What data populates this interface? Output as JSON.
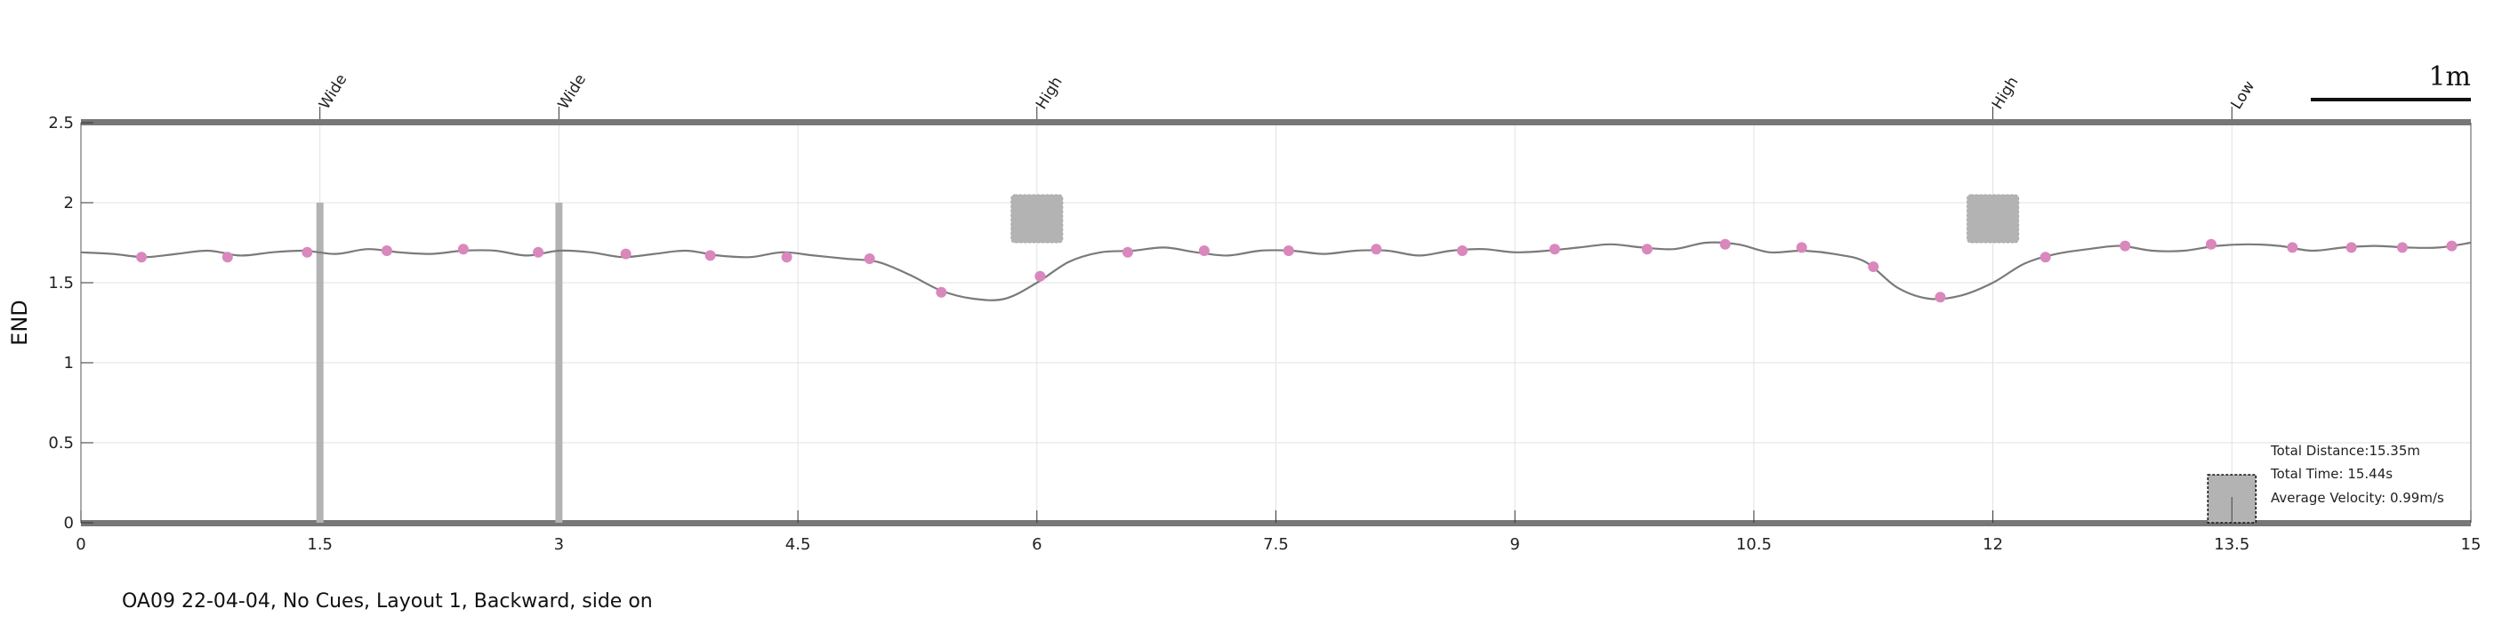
{
  "chart_data": {
    "type": "line",
    "title": "",
    "xlabel": "",
    "ylabel": "END",
    "xlim": [
      0,
      15
    ],
    "ylim": [
      0,
      2.5
    ],
    "xticks": [
      "0",
      "1.5",
      "3",
      "4.5",
      "6",
      "7.5",
      "9",
      "10.5",
      "12",
      "13.5",
      "15"
    ],
    "yticks": [
      "0",
      "0.5",
      "1",
      "1.5",
      "2",
      "2.5"
    ],
    "grid": true,
    "series": [
      {
        "x": [
          0,
          0.2,
          0.4,
          0.6,
          0.8,
          1.0,
          1.2,
          1.4,
          1.6,
          1.8,
          2.0,
          2.2,
          2.4,
          2.6,
          2.8,
          3.0,
          3.2,
          3.4,
          3.6,
          3.8,
          4.0,
          4.2,
          4.4,
          4.6,
          4.8,
          5.0,
          5.2,
          5.4,
          5.6,
          5.8,
          6.0,
          6.2,
          6.4,
          6.6,
          6.8,
          7.0,
          7.2,
          7.4,
          7.6,
          7.8,
          8.0,
          8.2,
          8.4,
          8.6,
          8.8,
          9.0,
          9.2,
          9.4,
          9.6,
          9.8,
          10.0,
          10.2,
          10.4,
          10.6,
          10.8,
          11.0,
          11.2,
          11.4,
          11.6,
          11.8,
          12.0,
          12.2,
          12.4,
          12.6,
          12.8,
          13.0,
          13.2,
          13.4,
          13.6,
          13.8,
          14.0,
          14.2,
          14.4,
          14.6,
          14.8,
          15.0
        ],
        "values": [
          1.69,
          1.68,
          1.66,
          1.68,
          1.7,
          1.67,
          1.69,
          1.7,
          1.68,
          1.71,
          1.69,
          1.68,
          1.7,
          1.7,
          1.67,
          1.7,
          1.69,
          1.66,
          1.68,
          1.7,
          1.67,
          1.66,
          1.69,
          1.67,
          1.65,
          1.63,
          1.55,
          1.45,
          1.4,
          1.4,
          1.5,
          1.63,
          1.69,
          1.7,
          1.72,
          1.69,
          1.67,
          1.7,
          1.7,
          1.68,
          1.7,
          1.7,
          1.67,
          1.7,
          1.71,
          1.69,
          1.7,
          1.72,
          1.74,
          1.72,
          1.71,
          1.75,
          1.74,
          1.69,
          1.7,
          1.68,
          1.63,
          1.47,
          1.4,
          1.42,
          1.5,
          1.62,
          1.68,
          1.71,
          1.73,
          1.7,
          1.7,
          1.73,
          1.74,
          1.73,
          1.7,
          1.72,
          1.73,
          1.72,
          1.72,
          1.75
        ]
      }
    ],
    "markers": {
      "x": [
        0.38,
        0.92,
        1.42,
        1.92,
        2.4,
        2.87,
        3.42,
        3.95,
        4.43,
        4.95,
        5.4,
        6.02,
        6.57,
        7.05,
        7.58,
        8.13,
        8.67,
        9.25,
        9.83,
        10.32,
        10.8,
        11.25,
        11.67,
        12.33,
        12.83,
        13.37,
        13.88,
        14.25,
        14.57,
        14.88
      ],
      "values": [
        1.66,
        1.66,
        1.69,
        1.7,
        1.71,
        1.69,
        1.68,
        1.67,
        1.66,
        1.65,
        1.44,
        1.54,
        1.69,
        1.7,
        1.7,
        1.71,
        1.7,
        1.71,
        1.71,
        1.74,
        1.72,
        1.6,
        1.41,
        1.66,
        1.73,
        1.74,
        1.72,
        1.72,
        1.72,
        1.73
      ]
    },
    "obstacles": [
      {
        "label": "Wide",
        "x": 1.5,
        "kind": "bar",
        "y_top": 2.0
      },
      {
        "label": "Wide",
        "x": 3.0,
        "kind": "bar",
        "y_top": 2.0
      },
      {
        "label": "High",
        "x": 6.0,
        "kind": "box",
        "y_center": 1.9
      },
      {
        "label": "High",
        "x": 12.0,
        "kind": "box",
        "y_center": 1.9
      },
      {
        "label": "Low",
        "x": 13.5,
        "kind": "low",
        "y_top": 0.3
      }
    ],
    "scale_bar_label": "1m",
    "stats": {
      "distance": "Total Distance:15.35m",
      "time": "Total Time: 15.44s",
      "velocity": "Average Velocity: 0.99m/s"
    },
    "colors": {
      "line": "#7a7a7a",
      "marker": "#d987bd",
      "obstacle": "#b3b3b3",
      "frame": "#777777",
      "grid": "#e2e2e2"
    }
  },
  "caption": "OA09 22-04-04, No Cues, Layout 1, Backward, side on"
}
